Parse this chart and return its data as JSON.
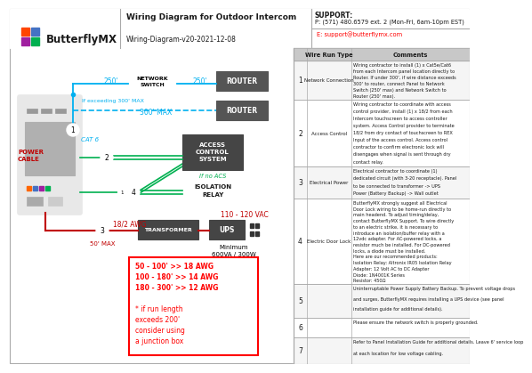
{
  "title": "Wiring Diagram for Outdoor Intercom",
  "subtitle": "Wiring-Diagram-v20-2021-12-08",
  "logo_text": "ButterflyMX",
  "support_line1": "SUPPORT:",
  "support_line2": "P: (571) 480.6579 ext. 2 (Mon-Fri, 6am-10pm EST)",
  "support_line3": "E: support@butterflymx.com",
  "bg_color": "#ffffff",
  "cyan": "#00b0f0",
  "green": "#00b050",
  "dark_red": "#c00000",
  "table_rows": [
    {
      "num": "1",
      "type": "Network Connection",
      "comment": "Wiring contractor to install (1) x Cat5e/Cat6\nfrom each Intercom panel location directly to\nRouter. If under 300', if wire distance exceeds\n300' to router, connect Panel to Network\nSwitch (250' max) and Network Switch to\nRouter (250' max)."
    },
    {
      "num": "2",
      "type": "Access Control",
      "comment": "Wiring contractor to coordinate with access\ncontrol provider, install (1) x 18/2 from each\nIntercom touchscreen to access controller\nsystem. Access Control provider to terminate\n18/2 from dry contact of touchscreen to REX\nInput of the access control. Access control\ncontractor to confirm electronic lock will\ndisengages when signal is sent through dry\ncontact relay."
    },
    {
      "num": "3",
      "type": "Electrical Power",
      "comment": "Electrical contractor to coordinate (1)\ndedicated circuit (with 3-20 receptacle). Panel\nto be connected to transformer -> UPS\nPower (Battery Backup) -> Wall outlet"
    },
    {
      "num": "4",
      "type": "Electric Door Lock",
      "comment": "ButterflyMX strongly suggest all Electrical\nDoor Lock wiring to be home-run directly to\nmain headend. To adjust timing/delay,\ncontact ButterflyMX Support. To wire directly\nto an electric strike, it is necessary to\nintroduce an isolation/buffer relay with a\n12vdc adapter. For AC-powered locks, a\nresistor much be installed. For DC-powered\nlocks, a diode must be installed.\nHere are our recommended products:\nIsolation Relay: Altronix IR05 Isolation Relay\nAdapter: 12 Volt AC to DC Adapter\nDiode: 1N4001K Series\nResistor: 450Ω"
    },
    {
      "num": "5",
      "type": "",
      "comment": "Uninterruptable Power Supply Battery Backup. To prevent voltage drops\nand surges, ButterflyMX requires installing a UPS device (see panel\ninstallation guide for additional details)."
    },
    {
      "num": "6",
      "type": "",
      "comment": "Please ensure the network switch is properly grounded."
    },
    {
      "num": "7",
      "type": "",
      "comment": "Refer to Panel Installation Guide for additional details. Leave 6' service loop\nat each location for low voltage cabling."
    }
  ]
}
